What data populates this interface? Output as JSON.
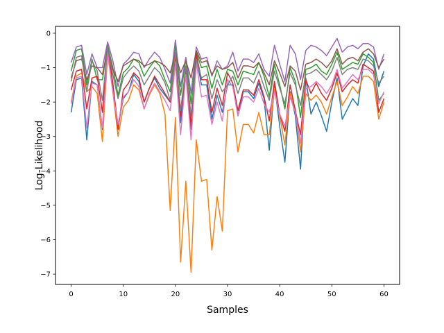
{
  "chart_data": {
    "type": "line",
    "title": "",
    "xlabel": "Samples",
    "ylabel": "Log-Likelihood",
    "xlim": [
      -3,
      63
    ],
    "ylim": [
      -7.3,
      0.2
    ],
    "xticks": [
      0,
      10,
      20,
      30,
      40,
      50,
      60
    ],
    "yticks": [
      0,
      -1,
      -2,
      -3,
      -4,
      -5,
      -6,
      -7
    ],
    "ytick_labels": [
      "0",
      "−1",
      "−2",
      "−3",
      "−4",
      "−5",
      "−6",
      "−7"
    ],
    "grid": false,
    "legend": "none",
    "x": [
      0,
      1,
      2,
      3,
      4,
      5,
      6,
      7,
      8,
      9,
      10,
      11,
      12,
      13,
      14,
      15,
      16,
      17,
      18,
      19,
      20,
      21,
      22,
      23,
      24,
      25,
      26,
      27,
      28,
      29,
      30,
      31,
      32,
      33,
      34,
      35,
      36,
      37,
      38,
      39,
      40,
      41,
      42,
      43,
      44,
      45,
      46,
      47,
      48,
      49,
      50,
      51,
      52,
      53,
      54,
      55,
      56,
      57,
      58,
      59,
      60
    ],
    "series": [
      {
        "color": "#1f77b4",
        "values": [
          -2.3,
          -1.35,
          -1.3,
          -3.1,
          -1.4,
          -1.5,
          -2.8,
          -0.5,
          -1.5,
          -2.7,
          -1.9,
          -1.7,
          -1.2,
          -1.4,
          -2.0,
          -1.6,
          -1.3,
          -1.6,
          -1.8,
          -2.0,
          -0.6,
          -2.6,
          -1.1,
          -2.8,
          -0.7,
          -1.5,
          -1.5,
          -2.5,
          -1.8,
          -2.3,
          -1.5,
          -1.5,
          -2.4,
          -1.7,
          -1.7,
          -1.9,
          -1.45,
          -1.9,
          -3.4,
          -1.5,
          -2.7,
          -3.75,
          -1.7,
          -2.4,
          -3.95,
          -1.3,
          -2.35,
          -2.0,
          -2.4,
          -2.85,
          -2.0,
          -1.3,
          -2.5,
          -2.2,
          -1.9,
          -2.1,
          -0.95,
          -0.6,
          -0.75,
          -1.55,
          -1.1
        ]
      },
      {
        "color": "#ff7f0e",
        "values": [
          -2.0,
          -1.25,
          -1.15,
          -1.7,
          -1.55,
          -1.75,
          -3.15,
          -0.6,
          -1.7,
          -3.0,
          -2.15,
          -1.95,
          -1.5,
          -1.65,
          -2.2,
          -1.8,
          -1.5,
          -1.75,
          -2.35,
          -5.15,
          -2.45,
          -6.65,
          -4.3,
          -6.95,
          -3.1,
          -4.3,
          -4.25,
          -6.3,
          -4.75,
          -5.75,
          -2.25,
          -2.2,
          -3.45,
          -2.65,
          -2.65,
          -2.9,
          -2.3,
          -2.95,
          -2.95,
          -1.6,
          -2.4,
          -3.25,
          -1.75,
          -2.2,
          -3.45,
          -1.75,
          -1.95,
          -1.8,
          -2.0,
          -2.35,
          -1.85,
          -1.4,
          -2.1,
          -1.85,
          -1.55,
          -1.75,
          -1.25,
          -1.25,
          -1.4,
          -2.5,
          -2.0
        ]
      },
      {
        "color": "#2ca02c",
        "values": [
          -1.1,
          -0.5,
          -0.45,
          -1.5,
          -0.75,
          -1.35,
          -1.35,
          -0.35,
          -1.0,
          -1.8,
          -1.15,
          -1.0,
          -0.75,
          -0.85,
          -1.25,
          -1.0,
          -0.8,
          -0.95,
          -1.35,
          -1.7,
          -0.35,
          -1.8,
          -0.75,
          -2.05,
          -0.55,
          -1.0,
          -0.95,
          -1.6,
          -1.05,
          -1.5,
          -1.05,
          -1.1,
          -1.5,
          -1.1,
          -1.15,
          -1.2,
          -0.85,
          -1.25,
          -1.85,
          -0.9,
          -1.5,
          -2.2,
          -1.0,
          -1.4,
          -2.45,
          -1.05,
          -1.0,
          -0.9,
          -1.1,
          -1.2,
          -0.9,
          -0.55,
          -1.05,
          -0.95,
          -0.85,
          -0.9,
          -0.6,
          -0.7,
          -0.85,
          -1.95,
          -1.75
        ]
      },
      {
        "color": "#d62728",
        "values": [
          -1.65,
          -1.1,
          -1.05,
          -2.2,
          -1.3,
          -1.25,
          -2.3,
          -0.4,
          -1.45,
          -2.8,
          -1.65,
          -1.45,
          -1.15,
          -1.3,
          -2.0,
          -1.6,
          -1.25,
          -1.5,
          -1.75,
          -2.0,
          -0.65,
          -2.4,
          -1.0,
          -2.7,
          -0.6,
          -1.35,
          -1.35,
          -2.3,
          -1.6,
          -2.1,
          -1.15,
          -1.45,
          -2.25,
          -1.65,
          -1.65,
          -1.8,
          -1.35,
          -1.85,
          -2.55,
          -1.4,
          -2.35,
          -2.85,
          -1.5,
          -2.25,
          -2.95,
          -1.35,
          -1.75,
          -1.45,
          -1.75,
          -1.95,
          -1.6,
          -1.15,
          -1.7,
          -1.5,
          -1.35,
          -1.45,
          -0.9,
          -1.0,
          -1.1,
          -2.3,
          -1.9
        ]
      },
      {
        "color": "#9467bd",
        "values": [
          -0.85,
          -0.4,
          -0.35,
          -1.2,
          -0.6,
          -1.0,
          -1.0,
          -0.25,
          -0.8,
          -1.55,
          -0.9,
          -0.75,
          -0.55,
          -0.6,
          -1.0,
          -0.75,
          -0.55,
          -0.7,
          -1.05,
          -1.45,
          -0.2,
          -1.55,
          -0.7,
          -1.75,
          -0.4,
          -0.75,
          -0.7,
          -1.25,
          -0.8,
          -1.05,
          -0.95,
          -0.55,
          -1.1,
          -0.75,
          -0.75,
          -0.85,
          -0.6,
          -1.05,
          -1.25,
          -0.35,
          -0.9,
          -1.4,
          -0.35,
          -0.6,
          -1.35,
          -0.5,
          -0.35,
          -0.4,
          -0.5,
          -0.65,
          -0.4,
          -0.15,
          -0.55,
          -0.4,
          -0.35,
          -0.45,
          -0.3,
          -0.3,
          -0.4,
          -1.05,
          -0.6
        ]
      },
      {
        "color": "#8c564b",
        "values": [
          -1.3,
          -0.8,
          -0.75,
          -1.35,
          -0.95,
          -1.0,
          -1.2,
          -0.45,
          -1.05,
          -1.4,
          -0.95,
          -0.85,
          -0.75,
          -0.8,
          -0.95,
          -0.9,
          -0.8,
          -0.85,
          -0.95,
          -1.15,
          -0.6,
          -1.15,
          -0.8,
          -1.3,
          -0.5,
          -0.85,
          -0.8,
          -1.2,
          -0.95,
          -1.05,
          -1.0,
          -0.85,
          -1.3,
          -0.95,
          -0.95,
          -1.0,
          -0.85,
          -1.15,
          -1.5,
          -0.8,
          -1.15,
          -1.55,
          -0.95,
          -1.1,
          -1.65,
          -0.9,
          -0.85,
          -0.75,
          -0.85,
          -1.0,
          -0.8,
          -0.45,
          -0.9,
          -0.75,
          -0.7,
          -0.8,
          -0.55,
          -0.45,
          -0.6,
          -1.0,
          -0.75
        ]
      },
      {
        "color": "#e377c2",
        "values": [
          -2.05,
          -1.3,
          -1.25,
          -2.75,
          -1.45,
          -1.5,
          -2.75,
          -0.55,
          -1.7,
          -2.65,
          -1.85,
          -1.7,
          -1.35,
          -1.55,
          -2.2,
          -1.75,
          -1.45,
          -1.7,
          -1.95,
          -2.25,
          -0.9,
          -2.95,
          -1.2,
          -3.1,
          -0.85,
          -1.85,
          -1.8,
          -2.65,
          -2.0,
          -2.55,
          -1.35,
          -1.55,
          -2.4,
          -1.85,
          -1.85,
          -2.0,
          -1.6,
          -2.05,
          -2.3,
          -1.7,
          -2.35,
          -2.7,
          -1.85,
          -2.3,
          -3.2,
          -1.6,
          -1.55,
          -1.4,
          -1.55,
          -1.75,
          -1.5,
          -1.05,
          -1.6,
          -1.4,
          -1.2,
          -1.35,
          -1.05,
          -1.05,
          -1.2,
          -2.05,
          -1.7
        ]
      },
      {
        "color": "#7f7f7f",
        "values": [
          -1.4,
          -0.7,
          -0.65,
          -1.7,
          -0.8,
          -1.1,
          -1.95,
          -0.4,
          -1.2,
          -1.9,
          -1.3,
          -1.1,
          -0.95,
          -1.1,
          -1.5,
          -1.25,
          -1.0,
          -1.15,
          -1.45,
          -1.95,
          -0.55,
          -2.25,
          -0.95,
          -2.4,
          -0.75,
          -1.3,
          -1.2,
          -1.9,
          -1.35,
          -1.7,
          -1.5,
          -1.25,
          -1.75,
          -1.3,
          -1.3,
          -1.45,
          -1.1,
          -1.55,
          -1.95,
          -1.1,
          -1.6,
          -2.05,
          -1.15,
          -1.5,
          -2.1,
          -1.2,
          -1.15,
          -1.05,
          -1.2,
          -1.35,
          -1.1,
          -0.7,
          -1.2,
          -1.05,
          -1.0,
          -1.05,
          -0.75,
          -0.8,
          -0.95,
          -1.45,
          -1.25
        ]
      }
    ]
  }
}
